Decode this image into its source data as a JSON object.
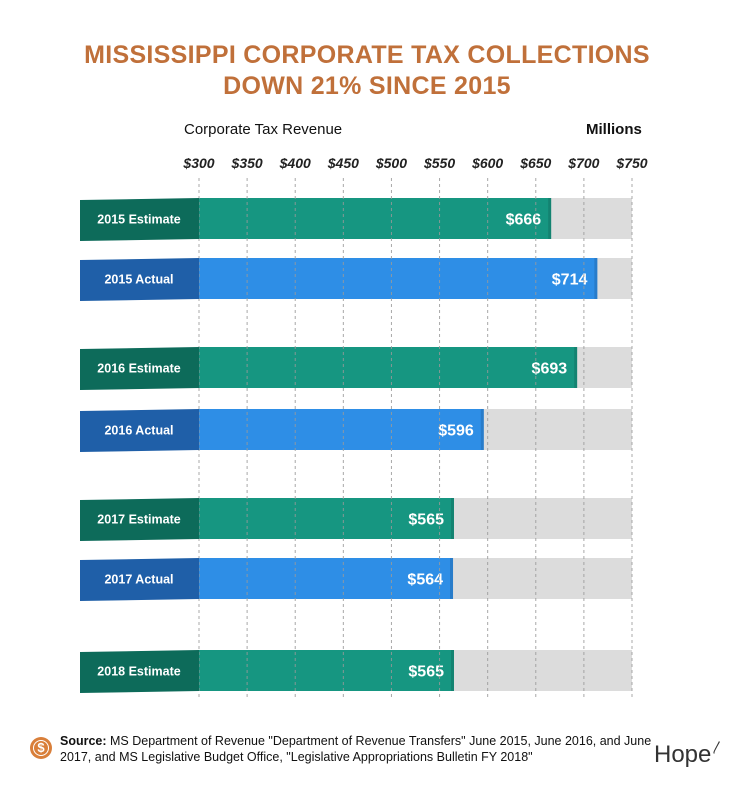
{
  "title_lines": [
    "MISSISSIPPI CORPORATE TAX COLLECTIONS",
    "DOWN 21% SINCE 2015"
  ],
  "colors": {
    "title": "#c0703a",
    "estimate": "#169681",
    "estimate_dark": "#0d6b5a",
    "actual": "#2e8ee6",
    "actual_dark": "#1f5fa8",
    "track": "#dcdcdc"
  },
  "chart_data": {
    "type": "bar",
    "orientation": "horizontal",
    "title": "MISSISSIPPI CORPORATE TAX COLLECTIONS DOWN 21% SINCE 2015",
    "xlabel": "Corporate Tax Revenue",
    "units": "Millions",
    "xlim": [
      300,
      750
    ],
    "ticks": [
      "$300",
      "$350",
      "$400",
      "$450",
      "$500",
      "$550",
      "$600",
      "$650",
      "$700",
      "$750"
    ],
    "tick_values": [
      300,
      350,
      400,
      450,
      500,
      550,
      600,
      650,
      700,
      750
    ],
    "grid": "vertical dashed",
    "categories": [
      "2015 Estimate",
      "2015 Actual",
      "2016 Estimate",
      "2016 Actual",
      "2017 Estimate",
      "2017 Actual",
      "2018 Estimate"
    ],
    "values": [
      666,
      714,
      693,
      596,
      565,
      564,
      565
    ],
    "value_labels": [
      "$666",
      "$714",
      "$693",
      "$596",
      "$565",
      "$564",
      "$565"
    ],
    "kinds": [
      "estimate",
      "actual",
      "estimate",
      "actual",
      "estimate",
      "actual",
      "estimate"
    ]
  },
  "footer": {
    "source_label": "Source:",
    "source_text": " MS Department of Revenue \"Department of Revenue Transfers\" June 2015, June 2016, and June 2017, and MS Legislative Budget Office, \"Legislative Appropriations Bulletin FY 2018\"",
    "logo_text": "Hope",
    "coin_icon": "dollar-coin-icon"
  }
}
